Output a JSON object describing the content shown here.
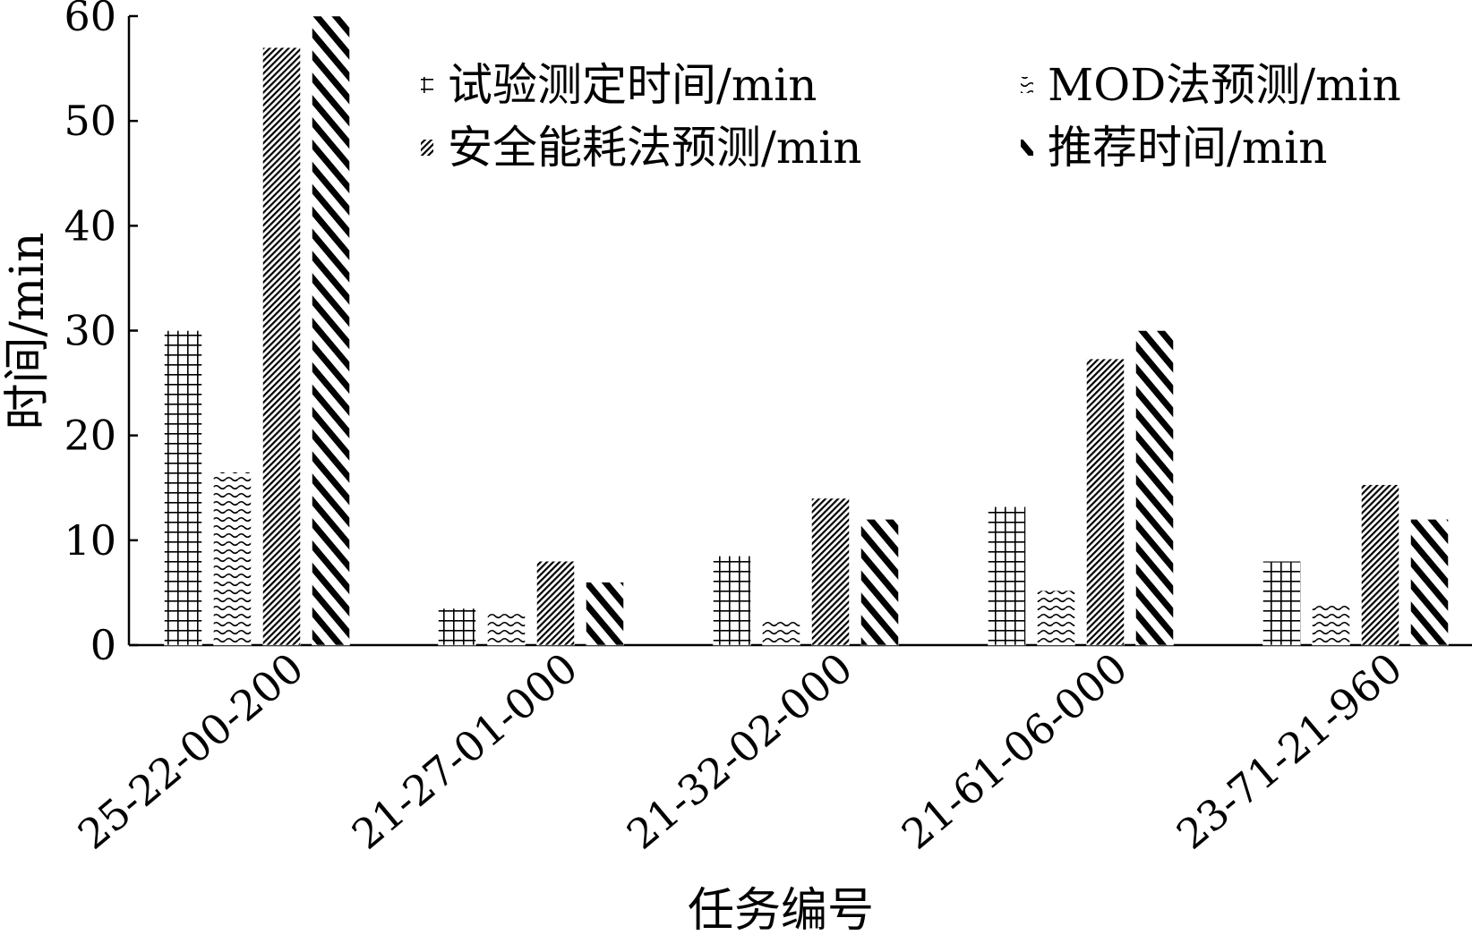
{
  "chart_data": {
    "type": "bar",
    "title": "",
    "xlabel": "任务编号",
    "ylabel": "时间/min",
    "ylim": [
      0,
      60
    ],
    "yticks": [
      0,
      10,
      20,
      30,
      40,
      50,
      60
    ],
    "grid": false,
    "legend_position": "top-right",
    "categories": [
      "25-22-00-200",
      "21-27-01-000",
      "21-32-02-000",
      "21-61-06-000",
      "23-71-21-960"
    ],
    "series": [
      {
        "name": "试验测定时间/min",
        "pattern": "grid",
        "values": [
          30,
          3.5,
          8.5,
          13.2,
          8
        ]
      },
      {
        "name": "MOD法预测/min",
        "pattern": "wave",
        "values": [
          16.5,
          3,
          2.5,
          5.2,
          3.8
        ]
      },
      {
        "name": "安全能耗法预测/min",
        "pattern": "fine-diagonal",
        "values": [
          57,
          8,
          14,
          27.3,
          15.3
        ]
      },
      {
        "name": "推荐时间/min",
        "pattern": "bold-diagonal",
        "values": [
          60,
          6,
          12,
          30,
          12
        ]
      }
    ]
  }
}
